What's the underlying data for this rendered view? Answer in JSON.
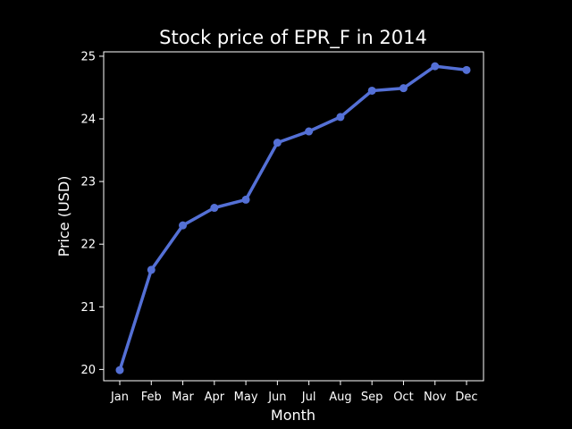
{
  "chart_data": {
    "type": "line",
    "title": "Stock price of EPR_F in 2014",
    "xlabel": "Month",
    "ylabel": "Price (USD)",
    "categories": [
      "Jan",
      "Feb",
      "Mar",
      "Apr",
      "May",
      "Jun",
      "Jul",
      "Aug",
      "Sep",
      "Oct",
      "Nov",
      "Dec"
    ],
    "values": [
      19.99,
      21.59,
      22.3,
      22.58,
      22.71,
      23.62,
      23.8,
      24.03,
      24.45,
      24.49,
      24.84,
      24.78
    ],
    "ylim": [
      19.82,
      25.07
    ],
    "yticks": [
      20,
      21,
      22,
      23,
      24,
      25
    ],
    "grid": false,
    "legend": "none",
    "colors": {
      "background": "#000000",
      "axes": "#ffffff",
      "text": "#ffffff",
      "line": "#5470d6"
    }
  }
}
